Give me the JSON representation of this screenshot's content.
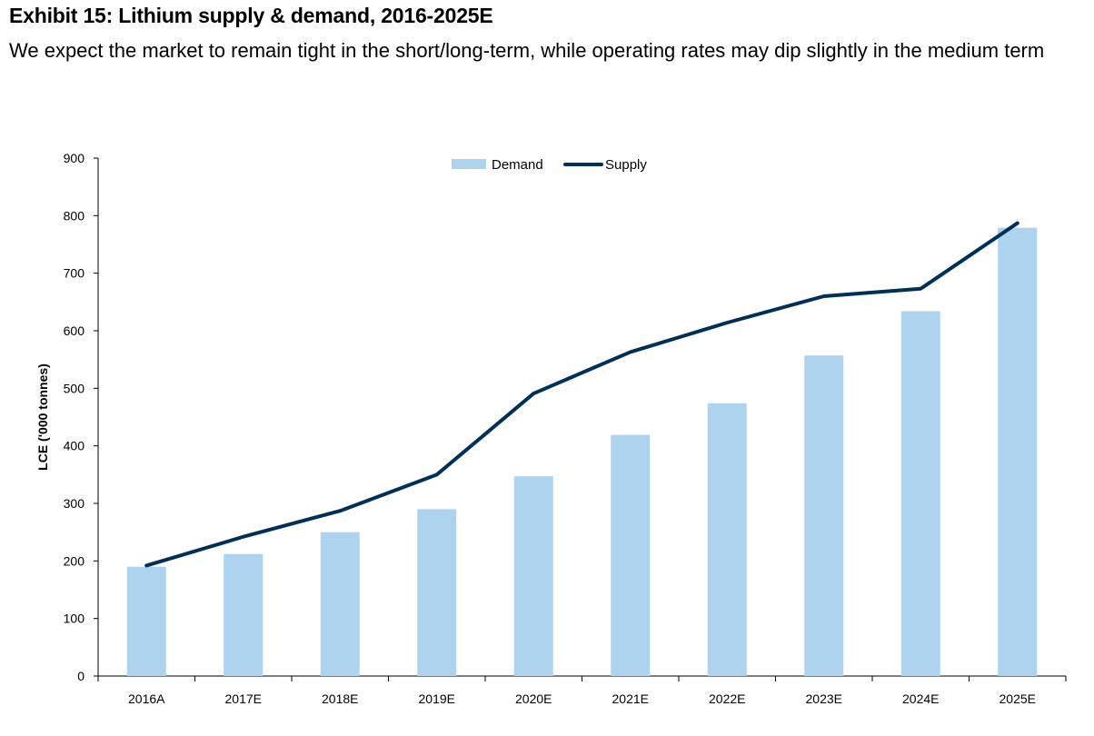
{
  "header": {
    "title": "Exhibit 15: Lithium supply & demand, 2016-2025E",
    "subtitle": "We expect the market to remain tight in the short/long-term, while operating rates may dip slightly in the medium term"
  },
  "colors": {
    "demand": "#aed3ef",
    "supply": "#002f57"
  },
  "chart_data": {
    "type": "bar",
    "categories": [
      "2016A",
      "2017E",
      "2018E",
      "2019E",
      "2020E",
      "2021E",
      "2022E",
      "2023E",
      "2024E",
      "2025E"
    ],
    "series": [
      {
        "name": "Demand",
        "type": "bar",
        "values": [
          190,
          212,
          250,
          290,
          347,
          419,
          474,
          557,
          634,
          779
        ]
      },
      {
        "name": "Supply",
        "type": "line",
        "values": [
          192,
          242,
          287,
          350,
          491,
          563,
          614,
          660,
          673,
          787
        ]
      }
    ],
    "title": "",
    "xlabel": "",
    "ylabel": "LCE ('000 tonnes)",
    "ylim": [
      0,
      900
    ],
    "yticks": [
      0,
      100,
      200,
      300,
      400,
      500,
      600,
      700,
      800,
      900
    ],
    "legend": "top-center",
    "grid": false
  }
}
